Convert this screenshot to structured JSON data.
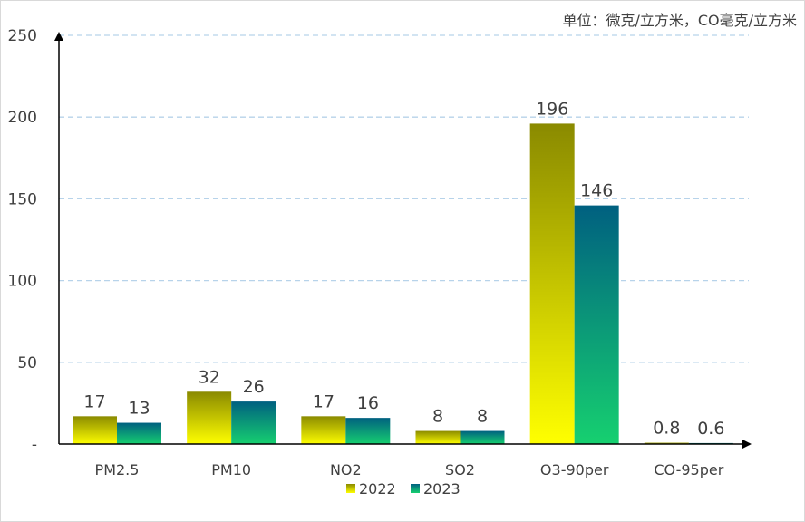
{
  "unit_note": "单位：微克/立方米，CO毫克/立方米",
  "chart_data": {
    "type": "bar",
    "title": "",
    "xlabel": "",
    "ylabel": "",
    "categories": [
      "PM2.5",
      "PM10",
      "NO2",
      "SO2",
      "O3-90per",
      "CO-95per"
    ],
    "series": [
      {
        "name": "2022",
        "values": [
          17,
          32,
          17,
          8,
          196,
          0.8
        ],
        "color_top": "#8a8a00",
        "color_bottom": "#ffff00"
      },
      {
        "name": "2023",
        "values": [
          13,
          26,
          16,
          8,
          146,
          0.6
        ],
        "color_top": "#006080",
        "color_bottom": "#16d070"
      }
    ],
    "ylim": [
      0,
      250
    ],
    "yticks": [
      0,
      50,
      100,
      150,
      200,
      250
    ],
    "ytick_labels": [
      "-",
      "50",
      "100",
      "150",
      "200",
      "250"
    ],
    "grid": true,
    "legend": "bottom"
  }
}
